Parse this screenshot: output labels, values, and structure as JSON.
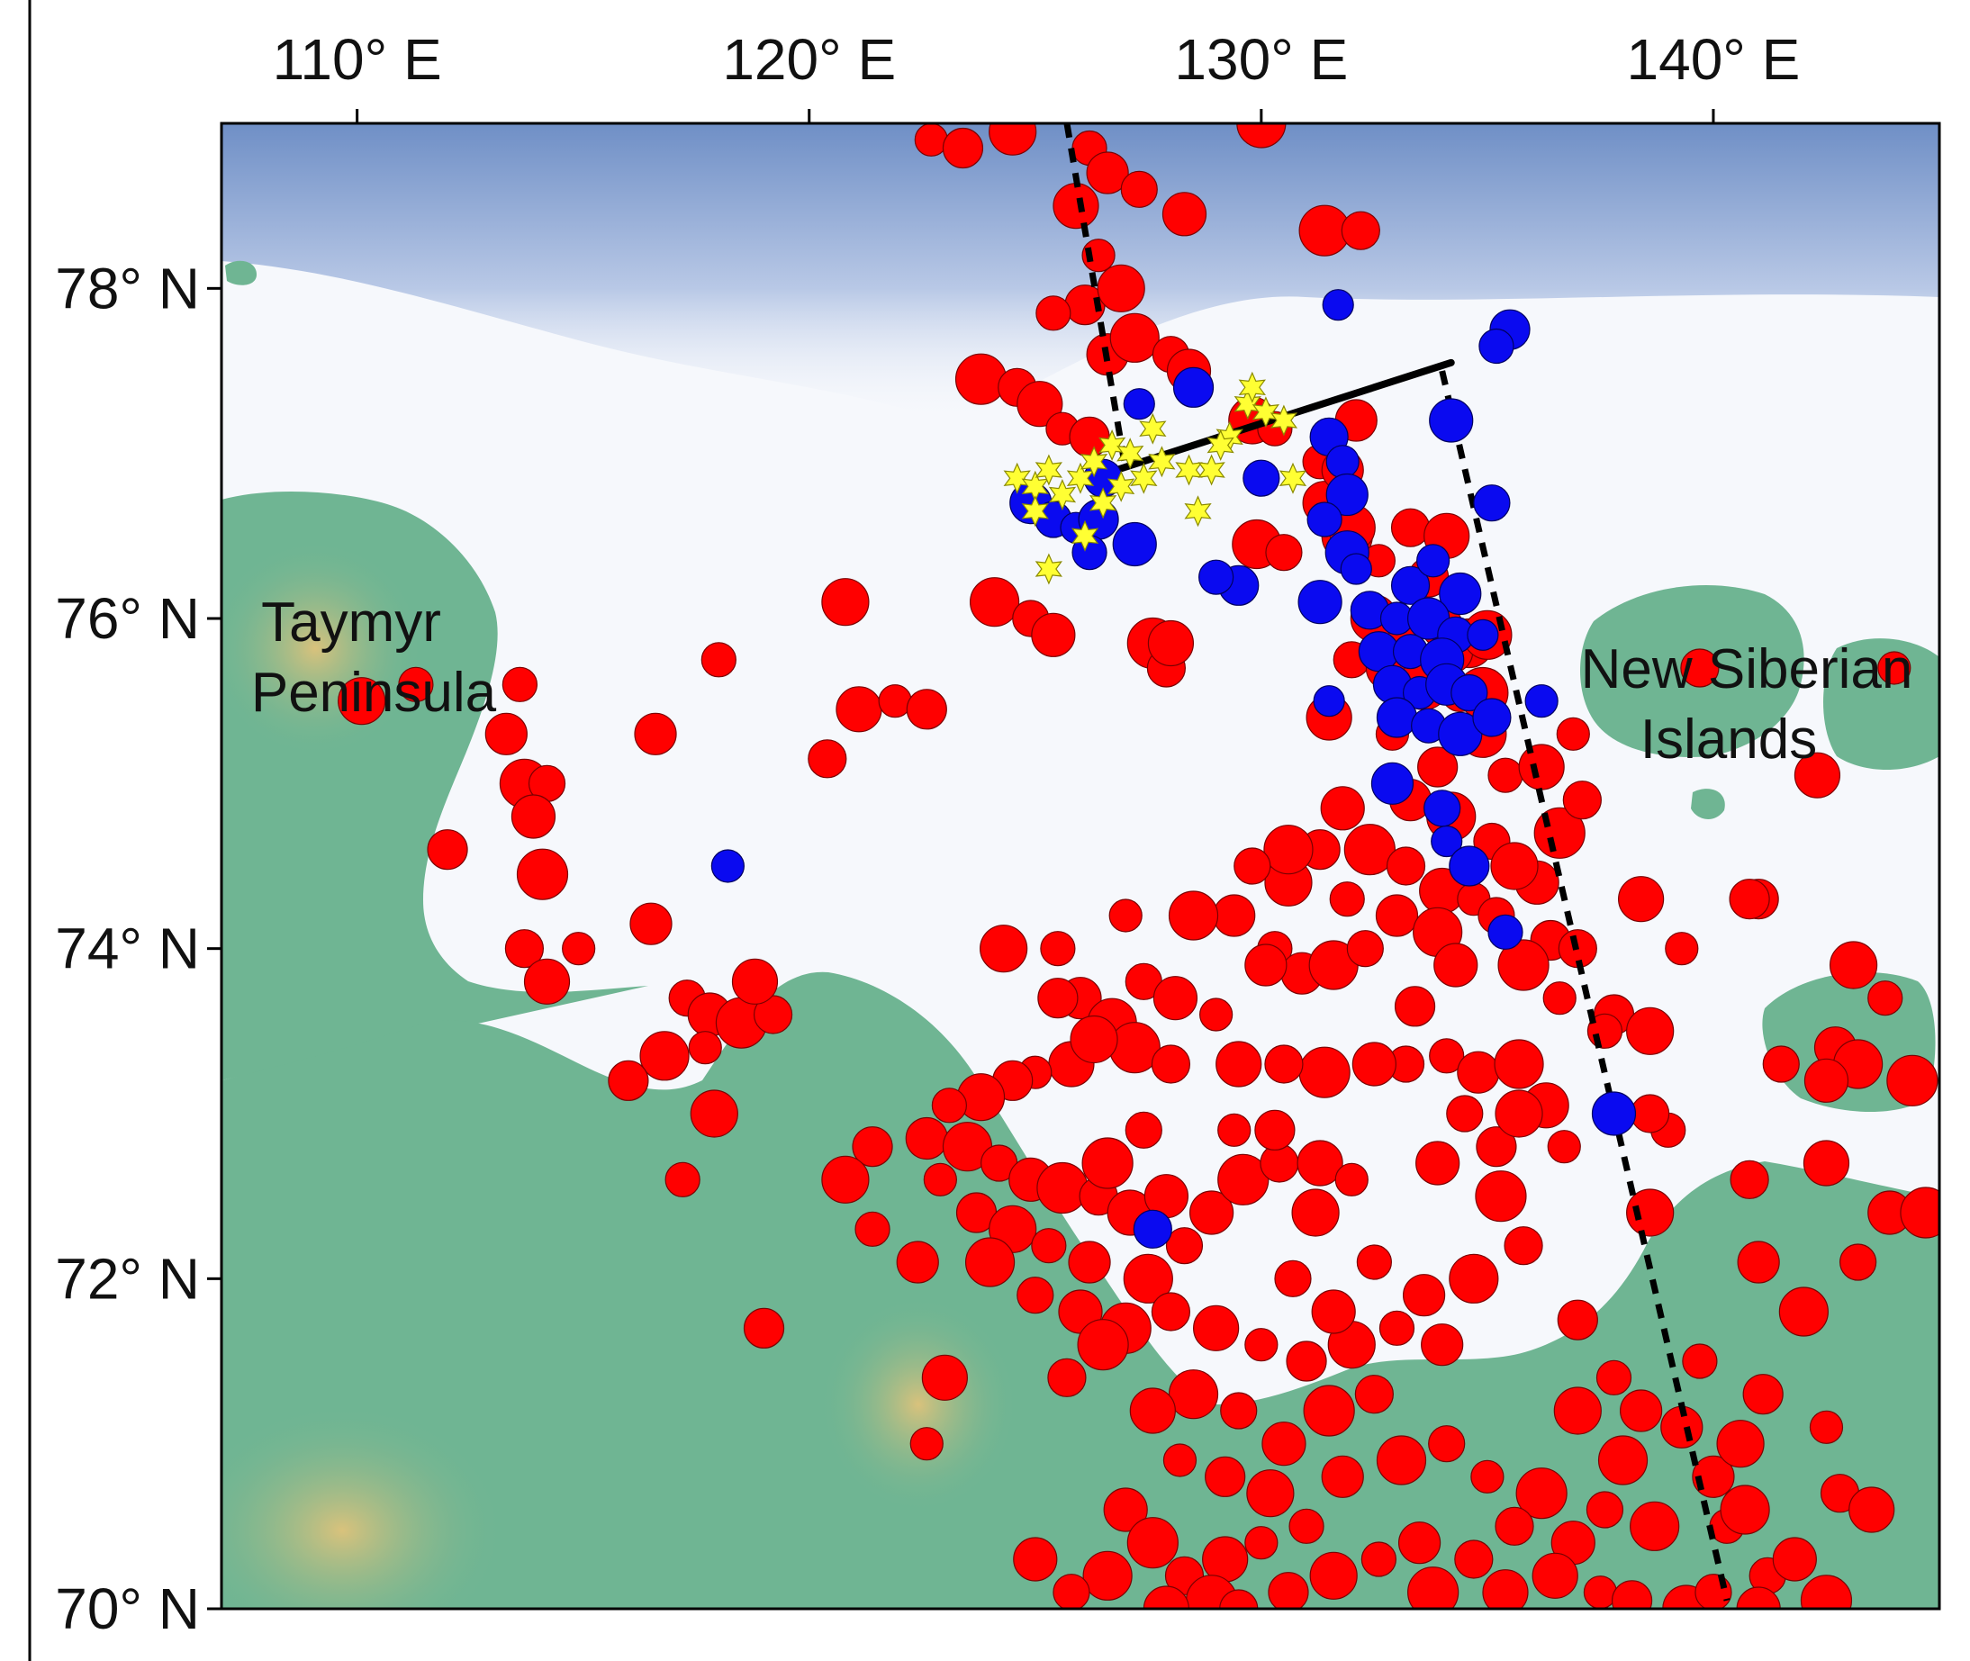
{
  "map": {
    "lon_range": [
      107,
      145
    ],
    "lat_range": [
      70,
      79
    ],
    "lon_ticks": [
      {
        "value": 110,
        "label": "110° E"
      },
      {
        "value": 120,
        "label": "120° E"
      },
      {
        "value": 130,
        "label": "130° E"
      },
      {
        "value": 140,
        "label": "140° E"
      }
    ],
    "lat_ticks": [
      {
        "value": 78,
        "label": "78° N"
      },
      {
        "value": 76,
        "label": "76° N"
      },
      {
        "value": 74,
        "label": "74° N"
      },
      {
        "value": 72,
        "label": "72° N"
      },
      {
        "value": 70,
        "label": "70° N"
      }
    ],
    "place_labels": {
      "taymyr_line1": "Taymyr",
      "taymyr_line2": "Peninsula",
      "nsi_line1": "New Siberian",
      "nsi_line2": "Islands"
    },
    "colors": {
      "land": "#6fb593",
      "land_dark": "#5ea482",
      "highland": "#c9c07a",
      "sea": "#f6f8fc",
      "deep_sea": "#6f8fc6",
      "red_marker": "#ff0000",
      "blue_marker": "#0a0af0",
      "yellow_marker": "#ffff33"
    },
    "solid_line": [
      [
        126.8,
        76.9
      ],
      [
        134.2,
        77.55
      ]
    ],
    "dashed_lines": [
      [
        [
          125.7,
          79.0
        ],
        [
          127.0,
          76.9
        ]
      ],
      [
        [
          134.0,
          77.5
        ],
        [
          140.3,
          70.05
        ]
      ]
    ],
    "red_points": [
      [
        122.7,
        78.9
      ],
      [
        123.4,
        78.85
      ],
      [
        124.5,
        78.95
      ],
      [
        126.2,
        78.85
      ],
      [
        126.6,
        78.7
      ],
      [
        130.0,
        79.0
      ],
      [
        127.3,
        78.6
      ],
      [
        128.3,
        78.45
      ],
      [
        131.4,
        78.35
      ],
      [
        132.2,
        78.35
      ],
      [
        125.9,
        78.5
      ],
      [
        126.4,
        78.2
      ],
      [
        126.1,
        77.9
      ],
      [
        126.9,
        78.0
      ],
      [
        125.4,
        77.85
      ],
      [
        126.6,
        77.6
      ],
      [
        127.2,
        77.7
      ],
      [
        128.0,
        77.6
      ],
      [
        128.4,
        77.5
      ],
      [
        123.8,
        77.45
      ],
      [
        124.6,
        77.4
      ],
      [
        125.1,
        77.3
      ],
      [
        125.6,
        77.15
      ],
      [
        126.2,
        77.1
      ],
      [
        129.8,
        77.2
      ],
      [
        130.3,
        77.15
      ],
      [
        132.1,
        77.2
      ],
      [
        129.9,
        76.45
      ],
      [
        130.5,
        76.4
      ],
      [
        131.4,
        76.7
      ],
      [
        131.9,
        76.5
      ],
      [
        133.3,
        76.55
      ],
      [
        134.1,
        76.5
      ],
      [
        132.6,
        76.35
      ],
      [
        133.7,
        76.25
      ],
      [
        132.5,
        76.0
      ],
      [
        133.2,
        75.9
      ],
      [
        134.0,
        75.95
      ],
      [
        134.6,
        75.85
      ],
      [
        132.0,
        75.75
      ],
      [
        132.8,
        75.7
      ],
      [
        133.6,
        75.6
      ],
      [
        134.4,
        75.55
      ],
      [
        131.5,
        75.4
      ],
      [
        132.9,
        75.3
      ],
      [
        133.9,
        75.1
      ],
      [
        134.9,
        75.3
      ],
      [
        135.4,
        75.05
      ],
      [
        133.3,
        74.9
      ],
      [
        134.2,
        74.8
      ],
      [
        135.1,
        74.65
      ],
      [
        131.8,
        74.85
      ],
      [
        132.4,
        74.6
      ],
      [
        133.2,
        74.5
      ],
      [
        134.0,
        74.35
      ],
      [
        134.7,
        74.3
      ],
      [
        131.3,
        74.6
      ],
      [
        130.6,
        74.4
      ],
      [
        131.9,
        74.3
      ],
      [
        133.0,
        74.2
      ],
      [
        133.9,
        74.1
      ],
      [
        135.2,
        74.2
      ],
      [
        136.1,
        74.4
      ],
      [
        136.6,
        74.7
      ],
      [
        137.1,
        74.9
      ],
      [
        136.2,
        75.1
      ],
      [
        136.9,
        75.3
      ],
      [
        136.4,
        74.05
      ],
      [
        135.6,
        74.5
      ],
      [
        130.3,
        74.0
      ],
      [
        130.9,
        73.85
      ],
      [
        131.6,
        73.9
      ],
      [
        132.3,
        74.0
      ],
      [
        134.3,
        73.9
      ],
      [
        135.8,
        73.9
      ],
      [
        137.0,
        74.0
      ],
      [
        138.4,
        74.3
      ],
      [
        136.6,
        73.7
      ],
      [
        137.8,
        73.6
      ],
      [
        138.6,
        73.5
      ],
      [
        134.1,
        73.35
      ],
      [
        134.8,
        73.25
      ],
      [
        135.7,
        73.3
      ],
      [
        133.2,
        73.3
      ],
      [
        132.5,
        73.3
      ],
      [
        131.4,
        73.25
      ],
      [
        130.5,
        73.3
      ],
      [
        129.5,
        73.3
      ],
      [
        129.0,
        73.6
      ],
      [
        133.4,
        73.65
      ],
      [
        124.3,
        74.0
      ],
      [
        125.5,
        74.0
      ],
      [
        126.0,
        73.7
      ],
      [
        126.7,
        73.55
      ],
      [
        127.4,
        73.8
      ],
      [
        128.1,
        73.7
      ],
      [
        127.2,
        73.4
      ],
      [
        128.0,
        73.3
      ],
      [
        125.8,
        73.3
      ],
      [
        125.0,
        73.25
      ],
      [
        124.5,
        73.2
      ],
      [
        123.8,
        73.1
      ],
      [
        123.1,
        73.05
      ],
      [
        122.6,
        72.85
      ],
      [
        123.5,
        72.8
      ],
      [
        124.2,
        72.7
      ],
      [
        124.9,
        72.6
      ],
      [
        125.6,
        72.55
      ],
      [
        126.4,
        72.5
      ],
      [
        127.1,
        72.4
      ],
      [
        122.9,
        72.6
      ],
      [
        123.7,
        72.4
      ],
      [
        124.5,
        72.3
      ],
      [
        125.3,
        72.2
      ],
      [
        126.2,
        72.1
      ],
      [
        127.5,
        72.0
      ],
      [
        128.3,
        72.2
      ],
      [
        128.9,
        72.4
      ],
      [
        129.6,
        72.6
      ],
      [
        130.4,
        72.7
      ],
      [
        131.3,
        72.7
      ],
      [
        132.0,
        72.6
      ],
      [
        121.4,
        72.8
      ],
      [
        120.8,
        72.6
      ],
      [
        121.4,
        72.3
      ],
      [
        122.4,
        72.1
      ],
      [
        124.0,
        72.1
      ],
      [
        125.0,
        71.9
      ],
      [
        126.0,
        71.8
      ],
      [
        127.0,
        71.7
      ],
      [
        128.0,
        71.8
      ],
      [
        129.0,
        71.7
      ],
      [
        130.0,
        71.6
      ],
      [
        131.0,
        71.5
      ],
      [
        132.0,
        71.6
      ],
      [
        133.0,
        71.7
      ],
      [
        134.0,
        71.6
      ],
      [
        128.5,
        71.3
      ],
      [
        129.5,
        71.2
      ],
      [
        130.5,
        71.0
      ],
      [
        131.5,
        71.2
      ],
      [
        132.5,
        71.3
      ],
      [
        127.6,
        71.2
      ],
      [
        128.2,
        70.9
      ],
      [
        129.2,
        70.8
      ],
      [
        130.2,
        70.7
      ],
      [
        131.0,
        70.5
      ],
      [
        131.8,
        70.8
      ],
      [
        133.1,
        70.9
      ],
      [
        134.1,
        71.0
      ],
      [
        127.0,
        70.6
      ],
      [
        127.6,
        70.4
      ],
      [
        128.3,
        70.2
      ],
      [
        129.2,
        70.3
      ],
      [
        130.0,
        70.4
      ],
      [
        130.6,
        70.1
      ],
      [
        131.6,
        70.2
      ],
      [
        132.6,
        70.3
      ],
      [
        133.5,
        70.4
      ],
      [
        126.6,
        70.2
      ],
      [
        125.8,
        70.1
      ],
      [
        125.0,
        70.3
      ],
      [
        128.9,
        70.05
      ],
      [
        129.5,
        70.0
      ],
      [
        127.9,
        70.0
      ],
      [
        129.4,
        72.9
      ],
      [
        130.3,
        72.9
      ],
      [
        131.2,
        72.4
      ],
      [
        132.5,
        72.1
      ],
      [
        133.6,
        71.9
      ],
      [
        134.7,
        72.0
      ],
      [
        130.7,
        72.0
      ],
      [
        131.6,
        71.8
      ],
      [
        126.5,
        71.6
      ],
      [
        125.7,
        71.4
      ],
      [
        123.0,
        71.4
      ],
      [
        122.6,
        71.0
      ],
      [
        119.0,
        71.7
      ],
      [
        137.0,
        71.2
      ],
      [
        137.8,
        71.4
      ],
      [
        138.4,
        71.2
      ],
      [
        138.0,
        70.9
      ],
      [
        137.6,
        70.6
      ],
      [
        136.9,
        70.4
      ],
      [
        136.2,
        70.7
      ],
      [
        135.6,
        70.5
      ],
      [
        136.5,
        70.2
      ],
      [
        137.5,
        70.1
      ],
      [
        138.2,
        70.05
      ],
      [
        139.4,
        70.0
      ],
      [
        140.3,
        70.5
      ],
      [
        140.0,
        70.8
      ],
      [
        140.7,
        70.6
      ],
      [
        141.2,
        70.2
      ],
      [
        141.8,
        70.3
      ],
      [
        142.5,
        70.05
      ],
      [
        142.8,
        70.7
      ],
      [
        143.5,
        70.6
      ],
      [
        142.5,
        71.1
      ],
      [
        141.1,
        71.3
      ],
      [
        140.6,
        71.0
      ],
      [
        139.7,
        71.5
      ],
      [
        139.3,
        71.1
      ],
      [
        138.7,
        70.5
      ],
      [
        140.0,
        70.1
      ],
      [
        141.0,
        70.0
      ],
      [
        133.8,
        70.1
      ],
      [
        134.7,
        70.3
      ],
      [
        135.4,
        70.1
      ],
      [
        135.0,
        70.8
      ],
      [
        137.0,
        71.75
      ],
      [
        138.6,
        72.4
      ],
      [
        139.0,
        72.9
      ],
      [
        141.0,
        72.1
      ],
      [
        142.0,
        71.8
      ],
      [
        143.2,
        72.1
      ],
      [
        143.9,
        72.4
      ],
      [
        144.7,
        72.4
      ],
      [
        140.8,
        72.6
      ],
      [
        142.5,
        72.7
      ],
      [
        139.3,
        74.0
      ],
      [
        141.0,
        74.3
      ],
      [
        143.1,
        73.9
      ],
      [
        143.8,
        73.7
      ],
      [
        142.7,
        73.4
      ],
      [
        143.2,
        73.3
      ],
      [
        141.5,
        73.3
      ],
      [
        142.5,
        73.2
      ],
      [
        144.4,
        73.2
      ],
      [
        138.6,
        73.0
      ],
      [
        136.3,
        73.05
      ],
      [
        136.7,
        72.8
      ],
      [
        135.2,
        72.8
      ],
      [
        135.7,
        73.0
      ],
      [
        137.6,
        73.5
      ],
      [
        129.4,
        74.2
      ],
      [
        128.5,
        74.2
      ],
      [
        127.4,
        72.9
      ],
      [
        127.9,
        72.5
      ],
      [
        126.6,
        72.7
      ],
      [
        120.4,
        75.15
      ],
      [
        121.1,
        75.45
      ],
      [
        121.9,
        75.5
      ],
      [
        122.6,
        75.45
      ],
      [
        120.8,
        76.1
      ],
      [
        118.0,
        75.75
      ],
      [
        116.6,
        75.3
      ],
      [
        124.1,
        76.1
      ],
      [
        124.9,
        76.0
      ],
      [
        125.4,
        75.9
      ],
      [
        127.6,
        75.85
      ],
      [
        127.9,
        75.7
      ],
      [
        128.0,
        75.85
      ],
      [
        127.0,
        74.2
      ],
      [
        125.5,
        73.7
      ],
      [
        126.3,
        73.45
      ],
      [
        113.6,
        75.6
      ],
      [
        113.3,
        75.3
      ],
      [
        113.7,
        75.0
      ],
      [
        114.2,
        75.0
      ],
      [
        113.9,
        74.8
      ],
      [
        114.1,
        74.45
      ],
      [
        113.7,
        74.0
      ],
      [
        114.2,
        73.8
      ],
      [
        114.9,
        74.0
      ],
      [
        112.0,
        74.6
      ],
      [
        110.1,
        75.5
      ],
      [
        111.3,
        75.6
      ],
      [
        116.5,
        74.15
      ],
      [
        116.8,
        73.35
      ],
      [
        117.3,
        73.7
      ],
      [
        117.8,
        73.6
      ],
      [
        118.5,
        73.55
      ],
      [
        119.2,
        73.6
      ],
      [
        118.8,
        73.8
      ],
      [
        117.7,
        73.4
      ],
      [
        116.0,
        73.2
      ],
      [
        117.9,
        73.0
      ],
      [
        117.2,
        72.6
      ],
      [
        130.1,
        73.9
      ],
      [
        130.6,
        74.6
      ],
      [
        129.8,
        74.5
      ],
      [
        134.2,
        75.8
      ],
      [
        134.9,
        75.55
      ],
      [
        139.7,
        75.7
      ],
      [
        142.3,
        75.05
      ],
      [
        144.0,
        75.7
      ],
      [
        140.8,
        74.3
      ],
      [
        132.0,
        76.55
      ],
      [
        131.3,
        76.95
      ],
      [
        131.8,
        76.9
      ],
      [
        135.0,
        75.9
      ],
      [
        134.5,
        73.0
      ],
      [
        133.9,
        72.7
      ],
      [
        135.3,
        72.5
      ],
      [
        135.8,
        72.2
      ]
    ],
    "blue_points": [
      [
        131.7,
        77.9
      ],
      [
        135.5,
        77.75
      ],
      [
        135.2,
        77.65
      ],
      [
        134.2,
        77.2
      ],
      [
        131.5,
        77.1
      ],
      [
        131.8,
        76.95
      ],
      [
        131.9,
        76.75
      ],
      [
        130.0,
        76.85
      ],
      [
        127.3,
        77.3
      ],
      [
        128.5,
        77.4
      ],
      [
        131.4,
        76.6
      ],
      [
        131.9,
        76.4
      ],
      [
        133.3,
        76.2
      ],
      [
        133.8,
        76.35
      ],
      [
        134.4,
        76.15
      ],
      [
        135.1,
        76.7
      ],
      [
        132.1,
        76.3
      ],
      [
        129.5,
        76.2
      ],
      [
        129.0,
        76.25
      ],
      [
        131.3,
        76.1
      ],
      [
        132.4,
        76.05
      ],
      [
        133.0,
        76.0
      ],
      [
        133.7,
        76.0
      ],
      [
        134.3,
        75.9
      ],
      [
        134.9,
        75.9
      ],
      [
        132.6,
        75.8
      ],
      [
        133.3,
        75.8
      ],
      [
        134.0,
        75.75
      ],
      [
        132.9,
        75.6
      ],
      [
        133.5,
        75.55
      ],
      [
        134.1,
        75.6
      ],
      [
        134.6,
        75.55
      ],
      [
        131.5,
        75.5
      ],
      [
        133.0,
        75.4
      ],
      [
        133.7,
        75.35
      ],
      [
        134.4,
        75.3
      ],
      [
        135.1,
        75.4
      ],
      [
        136.2,
        75.5
      ],
      [
        132.9,
        75.0
      ],
      [
        134.0,
        74.85
      ],
      [
        134.1,
        74.65
      ],
      [
        134.6,
        74.5
      ],
      [
        135.4,
        74.1
      ],
      [
        137.8,
        73.0
      ],
      [
        127.6,
        72.3
      ],
      [
        118.2,
        74.5
      ],
      [
        124.9,
        76.7
      ],
      [
        125.4,
        76.6
      ],
      [
        125.9,
        76.55
      ],
      [
        126.4,
        76.6
      ],
      [
        126.2,
        76.4
      ],
      [
        127.2,
        76.45
      ],
      [
        126.5,
        76.85
      ]
    ],
    "yellow_points": [
      [
        124.6,
        76.85
      ],
      [
        125.0,
        76.8
      ],
      [
        125.3,
        76.9
      ],
      [
        125.0,
        76.65
      ],
      [
        125.6,
        76.75
      ],
      [
        126.0,
        76.85
      ],
      [
        126.3,
        76.95
      ],
      [
        126.7,
        77.05
      ],
      [
        127.1,
        77.0
      ],
      [
        126.5,
        76.7
      ],
      [
        126.1,
        76.5
      ],
      [
        125.3,
        76.3
      ],
      [
        127.4,
        76.85
      ],
      [
        127.8,
        76.95
      ],
      [
        128.4,
        76.9
      ],
      [
        128.6,
        76.65
      ],
      [
        128.9,
        76.9
      ],
      [
        129.3,
        77.1
      ],
      [
        129.7,
        77.3
      ],
      [
        129.8,
        77.4
      ],
      [
        130.1,
        77.25
      ],
      [
        130.5,
        77.2
      ],
      [
        130.7,
        76.85
      ],
      [
        129.1,
        77.05
      ],
      [
        127.6,
        77.15
      ],
      [
        126.9,
        76.8
      ]
    ]
  }
}
